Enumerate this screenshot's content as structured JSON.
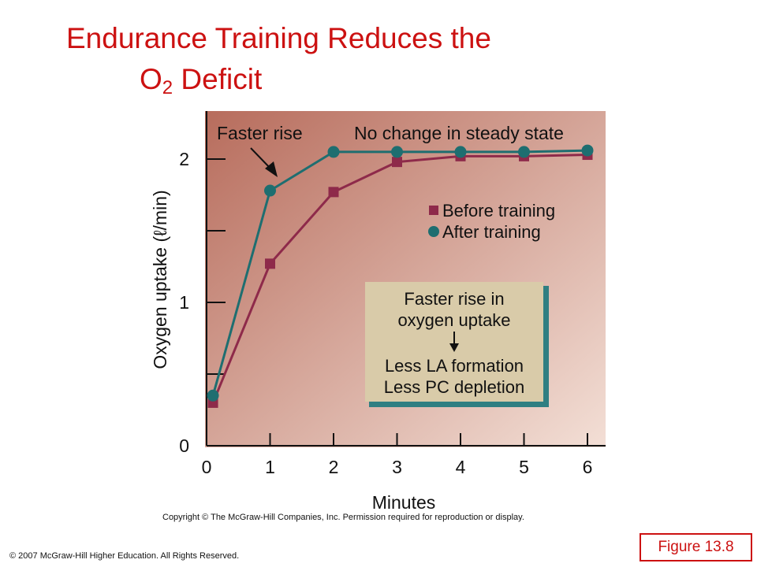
{
  "slide": {
    "title_line1": "Endurance Training Reduces the",
    "title_line2_main": "O",
    "title_line2_sub": "2",
    "title_line2_rest": " Deficit",
    "copyright_notice": "Copyright © The McGraw-Hill Companies, Inc. Permission required for reproduction or display.",
    "footer_left": "© 2007 McGraw-Hill Higher Education. All Rights Reserved.",
    "figure_label": "Figure 13.8"
  },
  "chart_data": {
    "type": "line",
    "xlabel": "Minutes",
    "ylabel": "Oxygen uptake (ℓ/min)",
    "xlim": [
      0,
      6.3
    ],
    "ylim": [
      0,
      2.3
    ],
    "x_ticks": [
      0,
      1,
      2,
      3,
      4,
      5,
      6
    ],
    "y_ticks": [
      0,
      0.5,
      1,
      1.5,
      2
    ],
    "y_tick_labels": [
      "0",
      "",
      "1",
      "",
      "2"
    ],
    "series": [
      {
        "name": "Before training",
        "marker": "square",
        "color": "#8e2a4a",
        "points": [
          [
            0.1,
            0.3
          ],
          [
            1.0,
            1.27
          ],
          [
            2.0,
            1.77
          ],
          [
            3.0,
            1.98
          ],
          [
            4.0,
            2.02
          ],
          [
            5.0,
            2.02
          ],
          [
            6.0,
            2.03
          ]
        ]
      },
      {
        "name": "After training",
        "marker": "circle",
        "color": "#1e6e70",
        "points": [
          [
            0.1,
            0.35
          ],
          [
            1.0,
            1.78
          ],
          [
            2.0,
            2.05
          ],
          [
            3.0,
            2.05
          ],
          [
            4.0,
            2.05
          ],
          [
            5.0,
            2.05
          ],
          [
            6.0,
            2.06
          ]
        ]
      }
    ],
    "annotations": {
      "faster_rise": "Faster rise",
      "steady_state": "No change in steady state",
      "box_line1": "Faster rise in",
      "box_line2": "oxygen uptake",
      "box_line3": "Less LA formation",
      "box_line4": "Less PC depletion"
    },
    "colors": {
      "plot_bg_dark": "#b76c5c",
      "plot_bg_light": "#f3dfd6",
      "box_fill": "#d9cba9",
      "box_shadow": "#2f7f82"
    }
  }
}
